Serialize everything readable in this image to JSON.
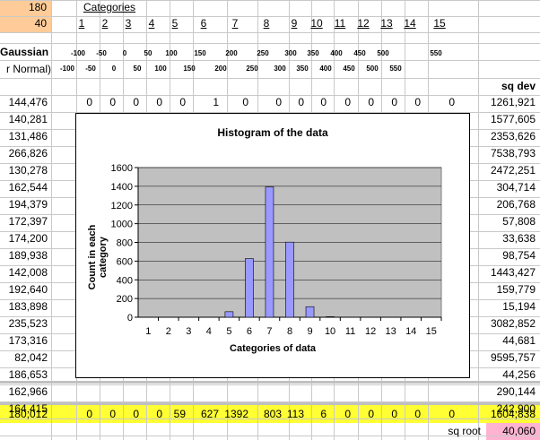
{
  "top_cells": {
    "a1": "180",
    "a2": "40"
  },
  "categories_label": "Categories",
  "categories": [
    "1",
    "2",
    "3",
    "4",
    "5",
    "6",
    "7",
    "8",
    "9",
    "10",
    "11",
    "12",
    "13",
    "14",
    "15"
  ],
  "lower_bounds": [
    "-100",
    "-50",
    "0",
    "50",
    "100",
    "150",
    "200",
    "250",
    "300",
    "350",
    "400",
    "450",
    "500",
    "",
    "550"
  ],
  "upper_bounds": [
    "-100",
    "-50",
    "0",
    "50",
    "100",
    "150",
    "200",
    "250",
    "300",
    "350",
    "400",
    "450",
    "500",
    "550",
    ""
  ],
  "left_header": {
    "line1": "Gaussian",
    "line2": "r Normal)"
  },
  "sqdev_header": "sq dev",
  "rows": [
    {
      "value": "144,476",
      "cats": [
        "0",
        "0",
        "0",
        "0",
        "0",
        "1",
        "0",
        "0",
        "0",
        "0",
        "0",
        "0",
        "0",
        "0",
        "0"
      ],
      "sqdev": "1261,921"
    },
    {
      "value": "140,281",
      "sqdev": "1577,605"
    },
    {
      "value": "131,486",
      "sqdev": "2353,626"
    },
    {
      "value": "266,826",
      "sqdev": "7538,793"
    },
    {
      "value": "130,278",
      "sqdev": "2472,251"
    },
    {
      "value": "162,544",
      "sqdev": "304,714"
    },
    {
      "value": "194,379",
      "sqdev": "206,768"
    },
    {
      "value": "172,397",
      "sqdev": "57,808"
    },
    {
      "value": "174,200",
      "sqdev": "33,638"
    },
    {
      "value": "189,938",
      "sqdev": "98,754"
    },
    {
      "value": "142,008",
      "sqdev": "1443,427"
    },
    {
      "value": "192,640",
      "sqdev": "159,779"
    },
    {
      "value": "183,898",
      "sqdev": "15,194"
    },
    {
      "value": "235,523",
      "sqdev": "3082,852"
    },
    {
      "value": "173,316",
      "sqdev": "44,681"
    },
    {
      "value": "82,042",
      "sqdev": "9595,757"
    },
    {
      "value": "186,653",
      "sqdev": "44,256"
    },
    {
      "value": "162,966",
      "sqdev": "290,144"
    },
    {
      "value": "164,415",
      "sqdev": "242,900"
    }
  ],
  "totals": {
    "value": "180,012",
    "counts": [
      "0",
      "0",
      "0",
      "0",
      "59",
      "627",
      "1392",
      "803",
      "113",
      "6",
      "0",
      "0",
      "0",
      "0",
      "0"
    ],
    "sqdev": "1604,838"
  },
  "sqroot": {
    "label": "sq root",
    "value": "40,060"
  },
  "colors": {
    "highlight": "#ffff33",
    "orange": "#ffcc99",
    "pink": "#ffb3d1",
    "plot_bg": "#c0c0c0",
    "bar": "#9999ff"
  },
  "chart_data": {
    "type": "bar",
    "title": "Histogram of the data",
    "xlabel": "Categories of data",
    "ylabel": "Count in each category",
    "categories": [
      "1",
      "2",
      "3",
      "4",
      "5",
      "6",
      "7",
      "8",
      "9",
      "10",
      "11",
      "12",
      "13",
      "14",
      "15"
    ],
    "values": [
      0,
      0,
      0,
      0,
      59,
      627,
      1392,
      803,
      113,
      6,
      0,
      0,
      0,
      0,
      0
    ],
    "ylim": [
      0,
      1600
    ],
    "yticks": [
      "0",
      "200",
      "400",
      "600",
      "800",
      "1000",
      "1200",
      "1400",
      "1600"
    ],
    "grid": true,
    "legend": "none"
  }
}
